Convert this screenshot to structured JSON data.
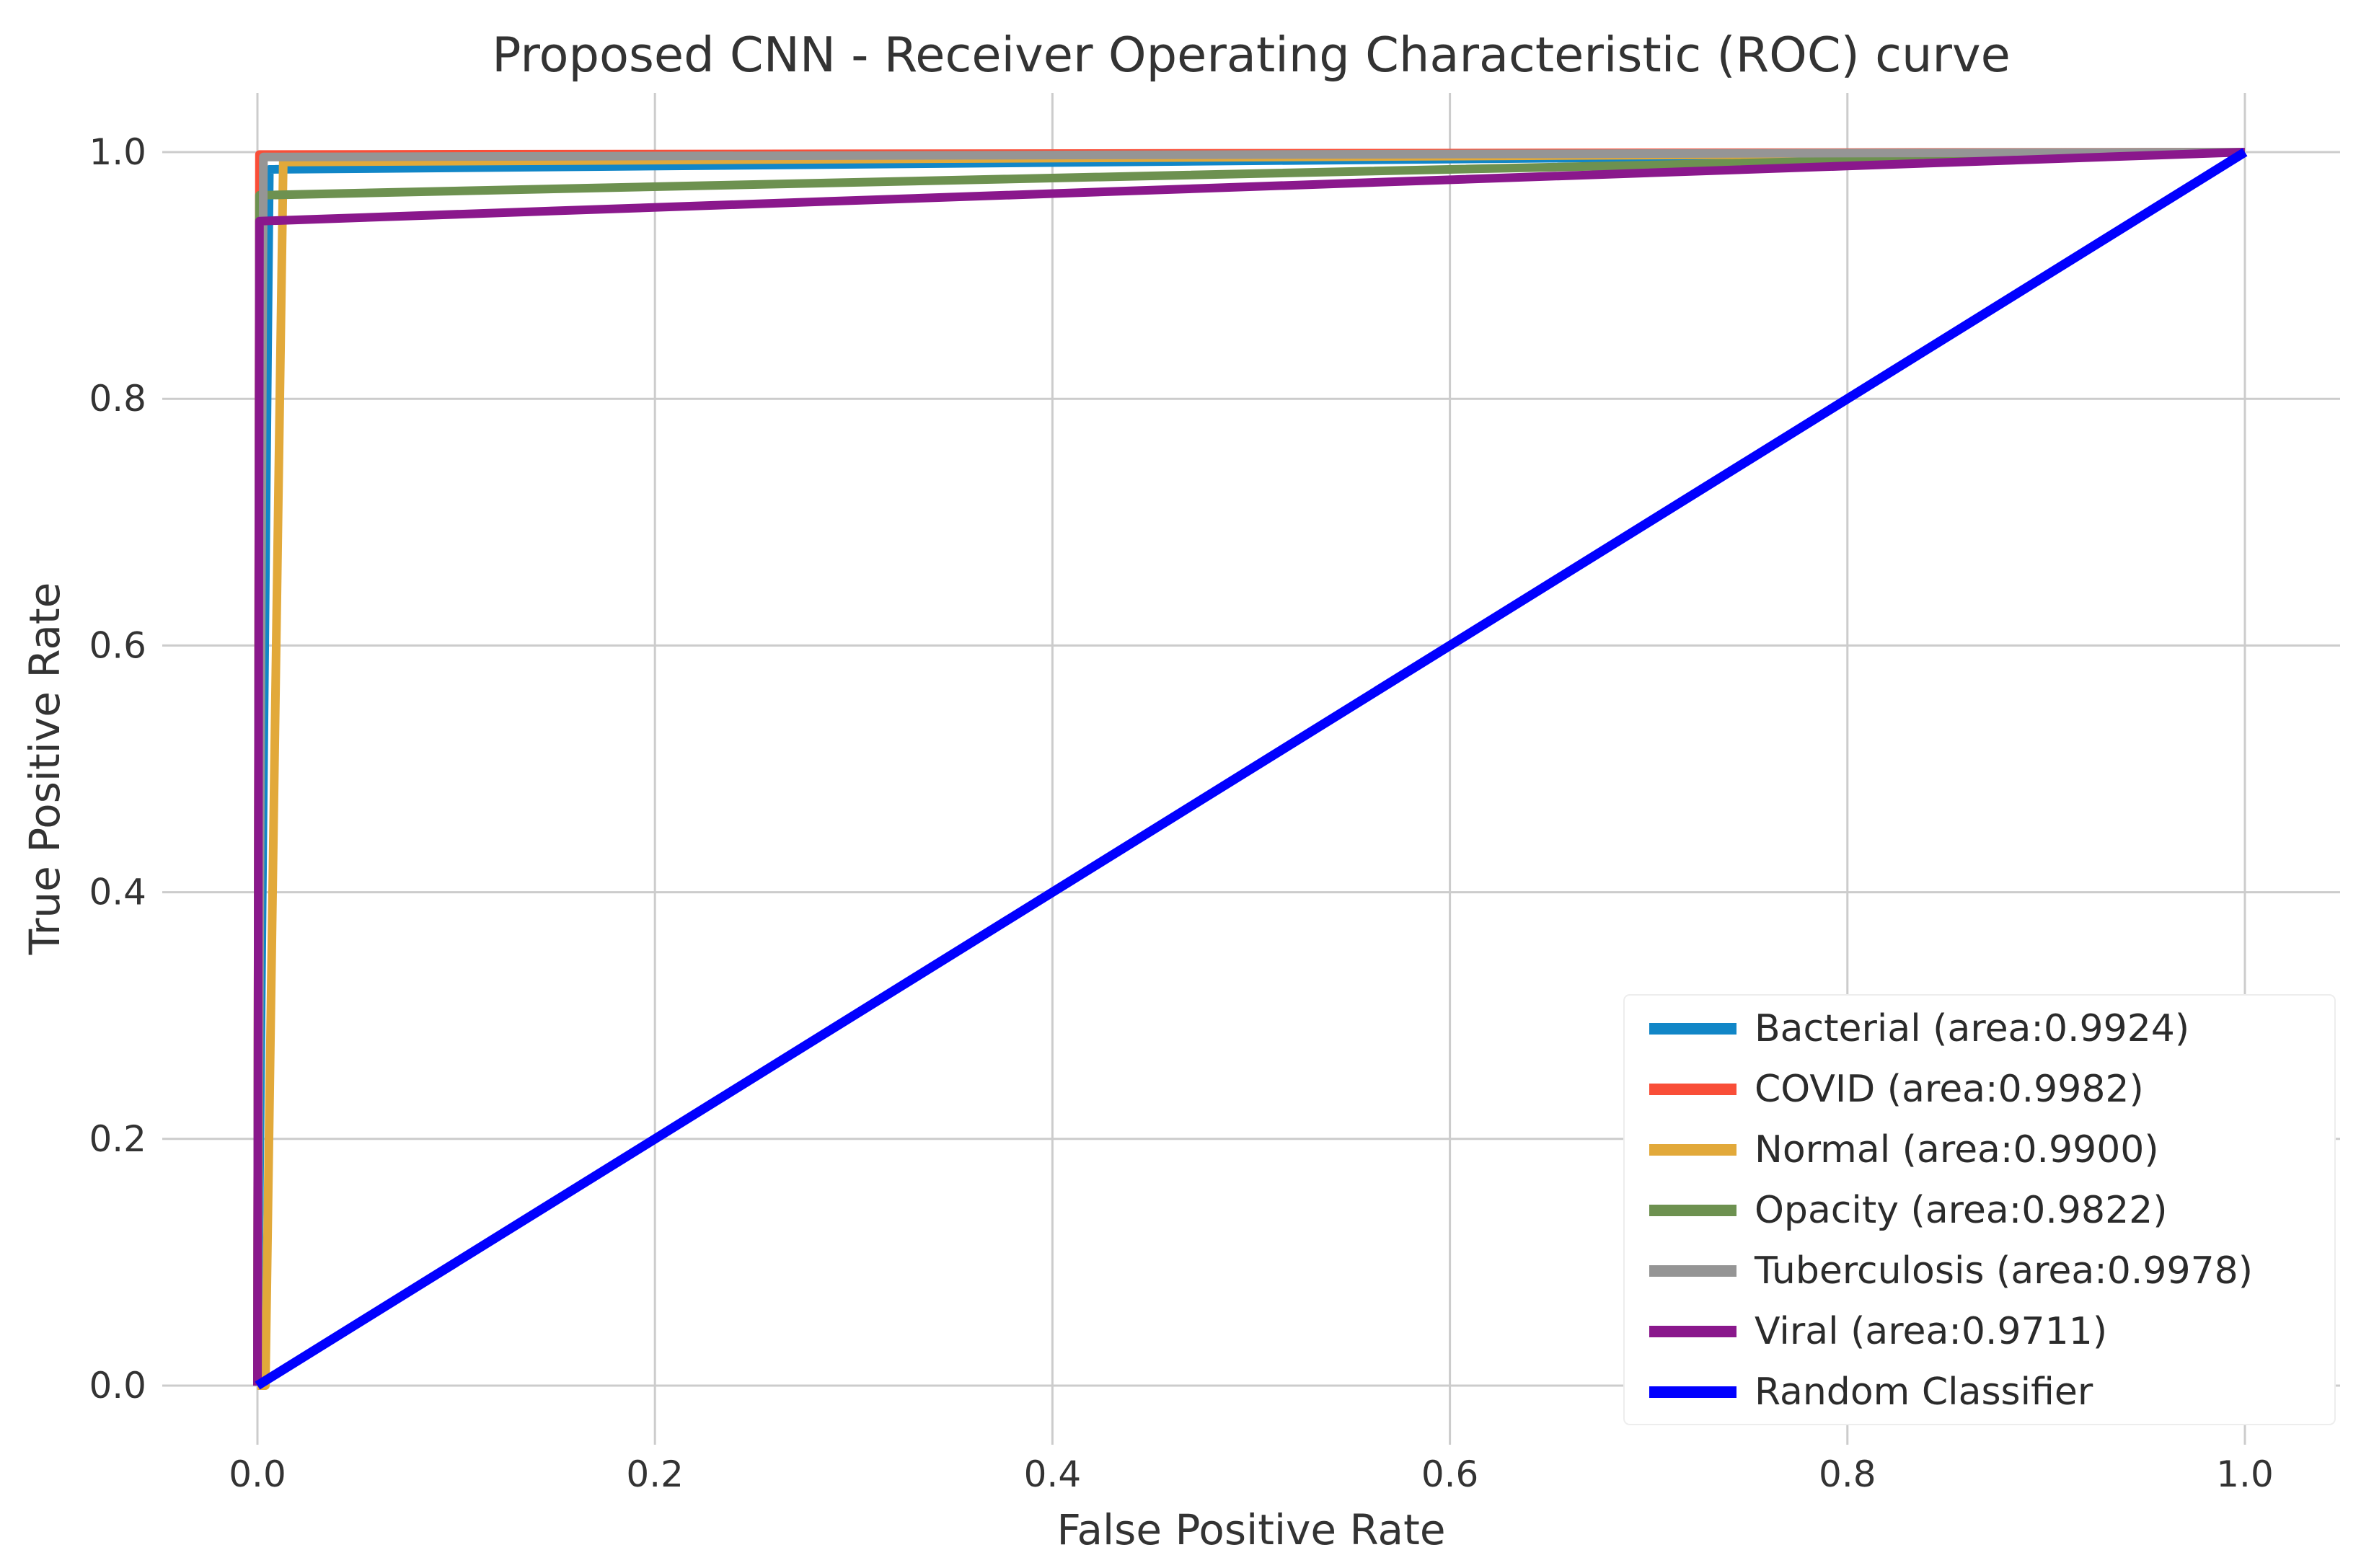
{
  "figure": {
    "background": "#ffffff",
    "grid_color": "#cccccc",
    "text_color": "#333333",
    "legend_bg": "#ffffff",
    "legend_border": "#ededed"
  },
  "chart_data": {
    "type": "line",
    "title": "Proposed CNN - Receiver Operating Characteristic (ROC) curve",
    "xlabel": "False Positive Rate",
    "ylabel": "True Positive Rate",
    "xlim": [
      -0.048,
      1.048
    ],
    "ylim": [
      -0.048,
      1.048
    ],
    "grid": true,
    "legend_position": "lower right",
    "xticks": [
      {
        "value": 0.0,
        "label": "0.0"
      },
      {
        "value": 0.2,
        "label": "0.2"
      },
      {
        "value": 0.4,
        "label": "0.4"
      },
      {
        "value": 0.6,
        "label": "0.6"
      },
      {
        "value": 0.8,
        "label": "0.8"
      },
      {
        "value": 1.0,
        "label": "1.0"
      }
    ],
    "yticks": [
      {
        "value": 0.0,
        "label": "0.0"
      },
      {
        "value": 0.2,
        "label": "0.2"
      },
      {
        "value": 0.4,
        "label": "0.4"
      },
      {
        "value": 0.6,
        "label": "0.6"
      },
      {
        "value": 0.8,
        "label": "0.8"
      },
      {
        "value": 1.0,
        "label": "1.0"
      }
    ],
    "series": [
      {
        "name": "Bacterial",
        "area": 0.9924,
        "legend_label": "Bacterial (area:0.9924)",
        "color": "#1186c7",
        "points": [
          [
            0,
            0
          ],
          [
            0.006,
            0.986
          ],
          [
            1,
            1
          ]
        ]
      },
      {
        "name": "COVID",
        "area": 0.9982,
        "legend_label": "COVID (area:0.9982)",
        "color": "#f94e38",
        "points": [
          [
            0,
            0
          ],
          [
            0.001,
            0.998
          ],
          [
            1,
            1
          ]
        ]
      },
      {
        "name": "Normal",
        "area": 0.99,
        "legend_label": "Normal (area:0.9900)",
        "color": "#e2a93a",
        "points": [
          [
            0,
            0
          ],
          [
            0.004,
            0
          ],
          [
            0.013,
            0.992
          ],
          [
            1,
            1
          ]
        ]
      },
      {
        "name": "Opacity",
        "area": 0.9822,
        "legend_label": "Opacity (area:0.9822)",
        "color": "#6d9150",
        "points": [
          [
            0,
            0
          ],
          [
            0.001,
            0.965
          ],
          [
            1,
            1
          ]
        ]
      },
      {
        "name": "Tuberculosis",
        "area": 0.9978,
        "legend_label": "Tuberculosis (area:0.9978)",
        "color": "#959595",
        "points": [
          [
            0,
            0
          ],
          [
            0.003,
            0.996
          ],
          [
            1,
            1
          ]
        ]
      },
      {
        "name": "Viral",
        "area": 0.9711,
        "legend_label": "Viral (area:0.9711)",
        "color": "#8a188c",
        "points": [
          [
            0,
            0
          ],
          [
            0.001,
            0.944
          ],
          [
            1,
            1
          ]
        ]
      },
      {
        "name": "Random Classifier",
        "legend_label": "Random Classifier",
        "color": "#0100fe",
        "points": [
          [
            0,
            0
          ],
          [
            1,
            1
          ]
        ]
      }
    ]
  }
}
